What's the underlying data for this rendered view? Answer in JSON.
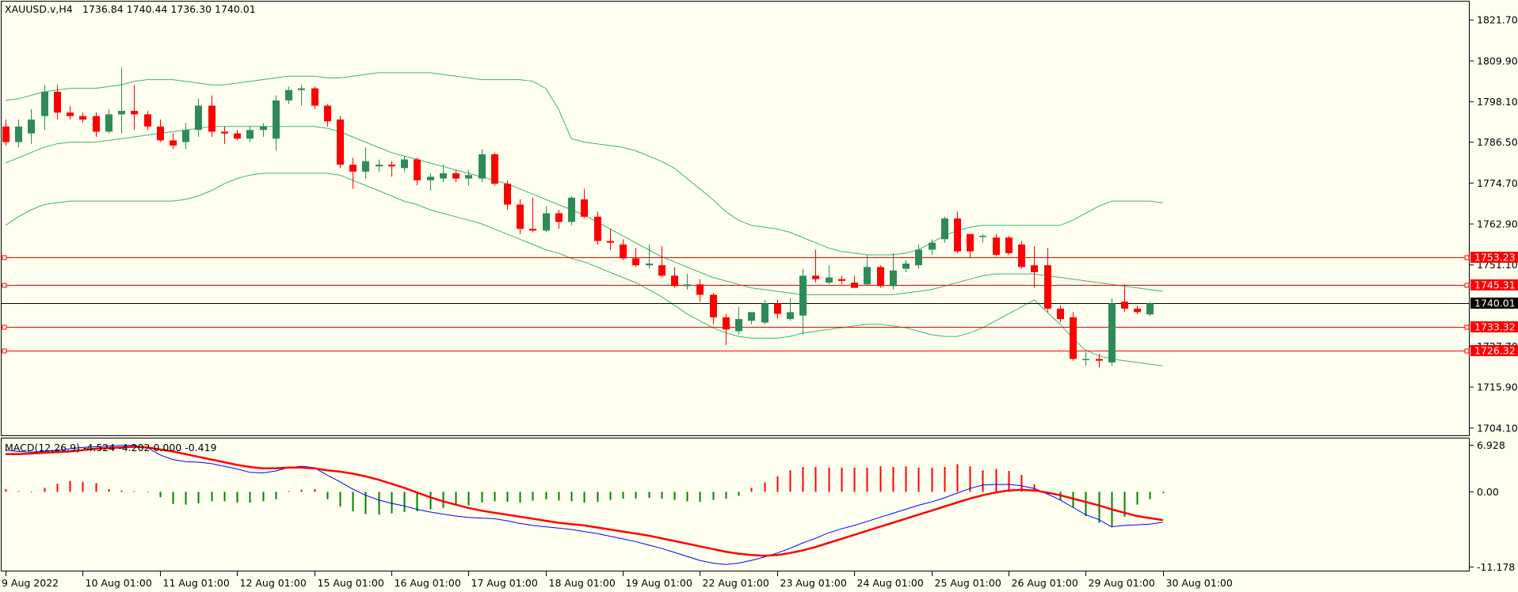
{
  "header": {
    "symbol": "XAUUSD.v,H4",
    "ohlc": "1736.84 1740.44 1736.30 1740.01"
  },
  "macd_header": "MACD(12,26,9) -4.524 -4.202 0.000 -0.419",
  "colors": {
    "background": "#ffffef",
    "bull": "#2e8b57",
    "bear": "#ff0000",
    "bollinger": "#3cb371",
    "hline": "#ff0000",
    "price_line": "#000000",
    "macd_line": "#0000ff",
    "signal_line": "#ff0000",
    "hist_pos": "#ff0000",
    "hist_neg": "#008000"
  },
  "chart_data": [
    {
      "type": "candlestick",
      "title": "XAUUSD.v,H4",
      "y_ticks": [
        "1821.70",
        "1809.90",
        "1798.10",
        "1786.50",
        "1774.70",
        "1762.90",
        "1751.10",
        "1727.70",
        "1715.90",
        "1704.10"
      ],
      "y_tick_values": [
        1821.7,
        1809.9,
        1798.1,
        1786.5,
        1774.7,
        1762.9,
        1751.1,
        1727.7,
        1715.9,
        1704.1
      ],
      "ylim": [
        1702,
        1827
      ],
      "x_tick_labels": [
        "9 Aug 2022",
        "10 Aug 01:00",
        "11 Aug 01:00",
        "12 Aug 01:00",
        "15 Aug 01:00",
        "16 Aug 01:00",
        "17 Aug 01:00",
        "18 Aug 01:00",
        "19 Aug 01:00",
        "22 Aug 01:00",
        "23 Aug 01:00",
        "24 Aug 01:00",
        "25 Aug 01:00",
        "26 Aug 01:00",
        "29 Aug 01:00",
        "30 Aug 01:00"
      ],
      "x_tick_bar_index": [
        0,
        6,
        12,
        18,
        24,
        30,
        36,
        42,
        48,
        54,
        60,
        66,
        72,
        78,
        84,
        90
      ],
      "horizontal_levels": [
        {
          "label": "1753.23",
          "value": 1753.23
        },
        {
          "label": "1745.31",
          "value": 1745.31
        },
        {
          "label": "1733.32",
          "value": 1733.32
        },
        {
          "label": "1726.32",
          "value": 1726.32
        }
      ],
      "current_price": {
        "label": "1740.01",
        "value": 1740.01
      },
      "ohlc": [
        [
          1791.0,
          1793.0,
          1785.5,
          1786.5
        ],
        [
          1786.5,
          1793.0,
          1785.0,
          1791.0
        ],
        [
          1789.0,
          1796.0,
          1786.0,
          1793.0
        ],
        [
          1794.0,
          1803.0,
          1790.0,
          1801.0
        ],
        [
          1801.0,
          1803.0,
          1793.0,
          1795.0
        ],
        [
          1795.0,
          1797.0,
          1793.0,
          1794.0
        ],
        [
          1794.0,
          1795.0,
          1792.0,
          1793.0
        ],
        [
          1794.0,
          1795.0,
          1788.0,
          1789.5
        ],
        [
          1789.5,
          1796.0,
          1789.0,
          1794.5
        ],
        [
          1794.5,
          1808.0,
          1789.0,
          1795.5
        ],
        [
          1795.5,
          1803.0,
          1790.0,
          1794.5
        ],
        [
          1794.5,
          1795.5,
          1790.0,
          1791.0
        ],
        [
          1791.0,
          1793.0,
          1786.5,
          1787.0
        ],
        [
          1787.0,
          1789.0,
          1784.5,
          1785.5
        ],
        [
          1786.5,
          1792.0,
          1784.5,
          1790.0
        ],
        [
          1790.0,
          1799.0,
          1788.0,
          1797.0
        ],
        [
          1797.0,
          1800.0,
          1788.0,
          1789.5
        ],
        [
          1789.5,
          1791.0,
          1786.0,
          1789.0
        ],
        [
          1789.0,
          1790.0,
          1787.0,
          1787.5
        ],
        [
          1787.5,
          1791.0,
          1786.5,
          1790.0
        ],
        [
          1790.0,
          1792.0,
          1788.0,
          1791.0
        ],
        [
          1787.5,
          1800.0,
          1784.0,
          1798.5
        ],
        [
          1798.5,
          1802.5,
          1797.5,
          1801.5
        ],
        [
          1801.5,
          1803.0,
          1797.0,
          1802.0
        ],
        [
          1802.0,
          1802.5,
          1796.0,
          1797.0
        ],
        [
          1797.0,
          1797.5,
          1791.0,
          1792.5
        ],
        [
          1793.0,
          1794.0,
          1779.0,
          1780.0
        ],
        [
          1780.0,
          1782.0,
          1773.0,
          1778.0
        ],
        [
          1778.0,
          1785.0,
          1776.0,
          1781.0
        ],
        [
          1779.5,
          1781.5,
          1778.0,
          1780.0
        ],
        [
          1780.0,
          1781.0,
          1776.5,
          1779.5
        ],
        [
          1779.0,
          1782.5,
          1778.0,
          1781.5
        ],
        [
          1781.5,
          1782.0,
          1774.0,
          1775.5
        ],
        [
          1775.5,
          1777.5,
          1772.5,
          1776.5
        ],
        [
          1776.0,
          1780.0,
          1775.0,
          1777.5
        ],
        [
          1777.5,
          1778.5,
          1775.0,
          1776.0
        ],
        [
          1776.0,
          1778.5,
          1774.0,
          1777.0
        ],
        [
          1776.0,
          1784.5,
          1775.0,
          1783.0
        ],
        [
          1783.0,
          1783.5,
          1774.0,
          1774.5
        ],
        [
          1774.5,
          1775.5,
          1767.0,
          1768.5
        ],
        [
          1768.5,
          1770.0,
          1760.0,
          1761.5
        ],
        [
          1761.5,
          1770.5,
          1760.5,
          1761.0
        ],
        [
          1761.0,
          1768.0,
          1760.5,
          1766.0
        ],
        [
          1766.0,
          1767.0,
          1761.5,
          1763.5
        ],
        [
          1763.5,
          1771.0,
          1762.5,
          1770.5
        ],
        [
          1770.0,
          1773.0,
          1764.5,
          1765.0
        ],
        [
          1765.0,
          1766.5,
          1757.0,
          1758.0
        ],
        [
          1758.0,
          1761.5,
          1755.5,
          1757.5
        ],
        [
          1757.0,
          1758.5,
          1752.5,
          1753.0
        ],
        [
          1753.0,
          1756.0,
          1750.5,
          1751.0
        ],
        [
          1751.0,
          1757.0,
          1750.0,
          1751.5
        ],
        [
          1751.0,
          1756.5,
          1747.5,
          1748.0
        ],
        [
          1748.0,
          1750.5,
          1744.5,
          1745.0
        ],
        [
          1745.0,
          1748.5,
          1744.0,
          1745.5
        ],
        [
          1745.5,
          1747.0,
          1740.5,
          1742.5
        ],
        [
          1742.5,
          1743.0,
          1734.0,
          1736.0
        ],
        [
          1736.0,
          1737.0,
          1728.0,
          1732.5
        ],
        [
          1732.0,
          1739.0,
          1731.0,
          1735.5
        ],
        [
          1735.0,
          1737.0,
          1734.0,
          1737.5
        ],
        [
          1734.5,
          1741.0,
          1734.0,
          1740.0
        ],
        [
          1740.0,
          1741.0,
          1735.5,
          1737.0
        ],
        [
          1735.5,
          1741.5,
          1735.0,
          1737.5
        ],
        [
          1736.5,
          1750.0,
          1731.0,
          1748.0
        ],
        [
          1748.0,
          1755.5,
          1746.0,
          1747.0
        ],
        [
          1746.0,
          1751.0,
          1745.5,
          1747.5
        ],
        [
          1747.0,
          1748.0,
          1745.5,
          1746.5
        ],
        [
          1746.0,
          1748.0,
          1744.5,
          1744.5
        ],
        [
          1745.5,
          1754.0,
          1745.0,
          1750.5
        ],
        [
          1750.5,
          1751.0,
          1744.5,
          1745.0
        ],
        [
          1745.0,
          1754.5,
          1744.0,
          1749.5
        ],
        [
          1750.0,
          1752.5,
          1749.0,
          1751.5
        ],
        [
          1751.0,
          1757.0,
          1750.0,
          1755.5
        ],
        [
          1755.5,
          1758.5,
          1754.0,
          1757.5
        ],
        [
          1758.5,
          1765.0,
          1757.5,
          1764.5
        ],
        [
          1764.5,
          1766.5,
          1754.5,
          1755.0
        ],
        [
          1760.0,
          1760.0,
          1753.0,
          1755.0
        ],
        [
          1759.5,
          1760.0,
          1757.5,
          1759.5
        ],
        [
          1759.0,
          1760.0,
          1753.5,
          1754.0
        ],
        [
          1759.0,
          1759.5,
          1754.0,
          1754.5
        ],
        [
          1757.0,
          1758.0,
          1750.0,
          1750.5
        ],
        [
          1751.0,
          1756.5,
          1744.5,
          1749.0
        ],
        [
          1751.0,
          1756.0,
          1737.5,
          1738.5
        ],
        [
          1738.5,
          1739.5,
          1734.5,
          1735.5
        ],
        [
          1736.0,
          1737.5,
          1723.5,
          1724.0
        ],
        [
          1724.0,
          1726.0,
          1722.0,
          1724.0
        ],
        [
          1724.0,
          1725.5,
          1721.5,
          1723.5
        ],
        [
          1723.0,
          1741.5,
          1722.0,
          1740.0
        ],
        [
          1740.5,
          1745.5,
          1737.5,
          1738.5
        ],
        [
          1738.5,
          1739.5,
          1737.0,
          1737.5
        ],
        [
          1736.84,
          1740.44,
          1736.3,
          1740.01
        ]
      ],
      "bollinger": {
        "upper": [
          1798.5,
          1799.0,
          1800.0,
          1801.0,
          1801.5,
          1802.0,
          1802.0,
          1802.0,
          1802.5,
          1803.0,
          1804.0,
          1804.5,
          1804.5,
          1804.5,
          1804.0,
          1803.5,
          1803.0,
          1803.0,
          1803.5,
          1804.0,
          1804.5,
          1805.0,
          1805.5,
          1805.5,
          1805.5,
          1805.0,
          1805.0,
          1805.5,
          1806.0,
          1806.5,
          1806.5,
          1806.5,
          1806.5,
          1806.5,
          1806.0,
          1805.5,
          1805.0,
          1804.5,
          1804.5,
          1804.5,
          1804.5,
          1804.0,
          1802.0,
          1796.0,
          1787.5,
          1786.5,
          1786.0,
          1785.5,
          1785.0,
          1784.0,
          1782.5,
          1781.0,
          1779.0,
          1776.0,
          1773.0,
          1770.0,
          1766.5,
          1764.0,
          1762.5,
          1762.0,
          1761.5,
          1760.5,
          1759.0,
          1757.5,
          1756.0,
          1755.0,
          1754.5,
          1754.0,
          1754.0,
          1754.0,
          1754.5,
          1755.5,
          1757.5,
          1759.5,
          1761.0,
          1762.0,
          1762.5,
          1762.5,
          1762.5,
          1762.5,
          1762.5,
          1762.5,
          1762.5,
          1764.0,
          1766.0,
          1768.0,
          1769.5,
          1769.5,
          1769.5,
          1769.5,
          1769.0
        ],
        "middle": [
          1780.5,
          1782.0,
          1783.5,
          1785.0,
          1786.0,
          1786.5,
          1786.5,
          1786.5,
          1787.0,
          1787.5,
          1788.0,
          1788.5,
          1789.0,
          1789.5,
          1790.0,
          1790.5,
          1791.0,
          1791.0,
          1791.0,
          1791.0,
          1791.0,
          1791.0,
          1791.0,
          1791.0,
          1791.0,
          1790.5,
          1789.5,
          1788.0,
          1786.5,
          1785.0,
          1783.5,
          1782.5,
          1781.5,
          1780.5,
          1779.5,
          1778.5,
          1777.5,
          1776.5,
          1775.5,
          1774.5,
          1773.0,
          1771.5,
          1770.0,
          1768.5,
          1767.0,
          1765.5,
          1763.5,
          1761.5,
          1759.5,
          1757.5,
          1755.5,
          1753.5,
          1752.0,
          1750.5,
          1749.0,
          1747.5,
          1746.5,
          1745.5,
          1744.5,
          1744.0,
          1743.5,
          1743.0,
          1742.5,
          1742.5,
          1742.5,
          1742.5,
          1742.5,
          1742.5,
          1742.5,
          1742.5,
          1743.0,
          1743.5,
          1744.0,
          1745.0,
          1746.0,
          1747.0,
          1748.0,
          1748.5,
          1748.5,
          1748.5,
          1748.5,
          1748.0,
          1747.5,
          1747.0,
          1746.5,
          1746.0,
          1745.5,
          1745.0,
          1744.5,
          1744.0,
          1743.5
        ],
        "lower": [
          1762.5,
          1765.0,
          1767.0,
          1768.5,
          1769.0,
          1769.5,
          1769.5,
          1769.5,
          1769.5,
          1769.5,
          1769.5,
          1769.5,
          1769.5,
          1769.5,
          1770.0,
          1771.0,
          1772.5,
          1774.5,
          1776.0,
          1777.0,
          1777.5,
          1777.5,
          1777.5,
          1777.5,
          1777.5,
          1777.5,
          1777.0,
          1775.5,
          1774.0,
          1772.5,
          1771.0,
          1769.5,
          1768.5,
          1767.0,
          1766.0,
          1765.0,
          1764.0,
          1763.0,
          1761.5,
          1760.0,
          1758.5,
          1757.0,
          1755.5,
          1754.5,
          1753.0,
          1752.0,
          1750.5,
          1749.0,
          1747.5,
          1746.0,
          1744.0,
          1742.0,
          1739.5,
          1737.0,
          1735.0,
          1733.0,
          1731.5,
          1730.5,
          1730.0,
          1730.0,
          1730.0,
          1730.5,
          1731.5,
          1732.0,
          1732.5,
          1733.0,
          1733.5,
          1734.0,
          1734.0,
          1733.5,
          1733.0,
          1732.0,
          1731.0,
          1730.5,
          1730.5,
          1731.5,
          1733.0,
          1735.0,
          1737.0,
          1739.0,
          1741.0,
          1737.5,
          1734.0,
          1730.0,
          1726.5,
          1725.0,
          1724.0,
          1723.5,
          1723.0,
          1722.5,
          1722.0
        ]
      }
    },
    {
      "type": "macd",
      "title": "MACD(12,26,9) -4.524 -4.202 0.000 -0.419",
      "y_ticks": [
        "6.928",
        "0.00",
        "-11.178"
      ],
      "y_tick_values": [
        6.928,
        0.0,
        -11.178
      ],
      "ylim": [
        -11.6,
        7.7
      ],
      "macd": [
        6.2,
        6.0,
        5.9,
        6.0,
        6.2,
        6.4,
        6.6,
        6.7,
        6.8,
        6.9,
        6.9,
        6.6,
        5.5,
        4.8,
        4.5,
        4.4,
        4.2,
        3.8,
        3.4,
        2.9,
        2.8,
        3.1,
        3.6,
        3.8,
        3.6,
        2.5,
        1.5,
        0.4,
        -0.5,
        -1.2,
        -1.7,
        -2.1,
        -2.6,
        -3.0,
        -3.3,
        -3.6,
        -3.8,
        -3.9,
        -4.0,
        -4.3,
        -4.7,
        -5.0,
        -5.2,
        -5.4,
        -5.6,
        -5.9,
        -6.2,
        -6.6,
        -7.0,
        -7.4,
        -7.9,
        -8.4,
        -9.0,
        -9.6,
        -10.2,
        -10.6,
        -10.8,
        -10.6,
        -10.2,
        -9.7,
        -9.1,
        -8.4,
        -7.6,
        -6.9,
        -6.1,
        -5.5,
        -5.0,
        -4.4,
        -3.8,
        -3.2,
        -2.6,
        -2.0,
        -1.5,
        -0.9,
        -0.2,
        0.5,
        1.0,
        1.1,
        1.1,
        0.9,
        0.5,
        -0.3,
        -1.2,
        -2.3,
        -3.4,
        -4.1,
        -5.2,
        -5.0,
        -4.9,
        -4.8,
        -4.524
      ],
      "signal": [
        5.6,
        5.6,
        5.7,
        5.8,
        5.9,
        6.0,
        6.2,
        6.4,
        6.5,
        6.6,
        6.7,
        6.6,
        6.3,
        6.0,
        5.6,
        5.2,
        4.8,
        4.4,
        4.0,
        3.7,
        3.5,
        3.5,
        3.6,
        3.6,
        3.5,
        3.2,
        3.0,
        2.7,
        2.3,
        1.8,
        1.2,
        0.6,
        -0.1,
        -0.8,
        -1.4,
        -1.9,
        -2.4,
        -2.8,
        -3.1,
        -3.4,
        -3.7,
        -4.0,
        -4.3,
        -4.6,
        -4.8,
        -5.0,
        -5.3,
        -5.6,
        -5.9,
        -6.2,
        -6.5,
        -6.9,
        -7.3,
        -7.7,
        -8.1,
        -8.5,
        -8.9,
        -9.2,
        -9.4,
        -9.5,
        -9.4,
        -9.1,
        -8.7,
        -8.2,
        -7.6,
        -7.0,
        -6.4,
        -5.8,
        -5.2,
        -4.6,
        -4.0,
        -3.4,
        -2.8,
        -2.2,
        -1.6,
        -1.0,
        -0.5,
        -0.1,
        0.2,
        0.3,
        0.2,
        -0.1,
        -0.5,
        -1.0,
        -1.5,
        -2.0,
        -2.6,
        -3.1,
        -3.6,
        -3.9,
        -4.202
      ],
      "histogram": [
        0.4,
        0.1,
        -0.1,
        0.6,
        1.2,
        1.6,
        1.5,
        1.3,
        0.4,
        0.2,
        0.1,
        -0.1,
        -0.8,
        -1.8,
        -1.9,
        -1.7,
        -1.4,
        -1.4,
        -1.6,
        -1.6,
        -1.4,
        -1.1,
        0.1,
        0.3,
        0.4,
        -1.1,
        -2.2,
        -2.9,
        -3.3,
        -3.4,
        -3.2,
        -3.0,
        -2.9,
        -2.6,
        -2.4,
        -1.9,
        -2.0,
        -1.6,
        -1.4,
        -1.5,
        -1.6,
        -1.3,
        -1.1,
        -1.3,
        -1.4,
        -1.6,
        -1.5,
        -1.2,
        -1.0,
        -1.0,
        -0.9,
        -1.0,
        -1.2,
        -1.4,
        -1.5,
        -1.2,
        -1.0,
        -0.6,
        0.6,
        1.4,
        2.3,
        3.2,
        3.7,
        3.7,
        3.6,
        3.6,
        3.6,
        3.6,
        3.8,
        3.7,
        3.8,
        3.6,
        3.6,
        3.7,
        4.1,
        3.8,
        3.2,
        3.4,
        3.1,
        2.5,
        1.1,
        -0.4,
        -1.3,
        -2.3,
        -3.6,
        -4.6,
        -5.1,
        -3.7,
        -1.9,
        -1.1,
        -0.2
      ]
    }
  ]
}
